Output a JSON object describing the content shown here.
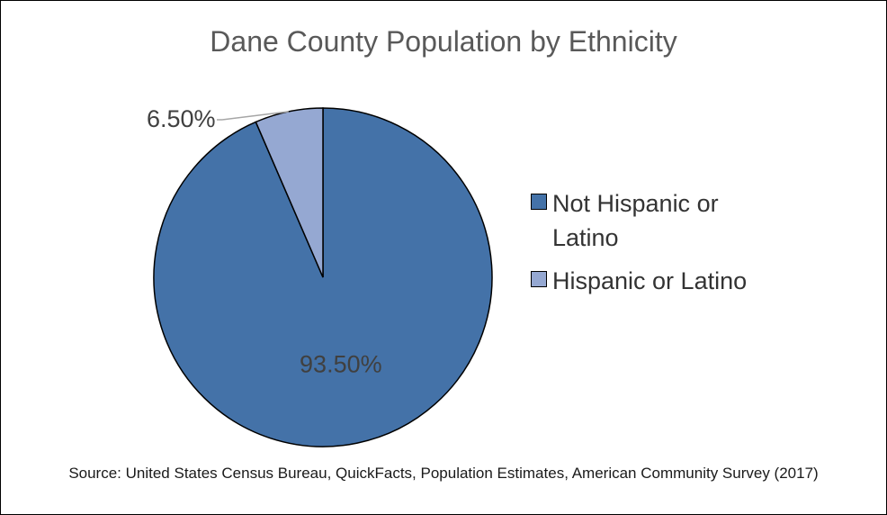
{
  "chart_data": {
    "type": "pie",
    "title": "Dane County Population by Ethnicity",
    "slices": [
      {
        "name": "Not Hispanic or Latino",
        "value": 93.5,
        "label": "93.50%",
        "color": "#4472A8"
      },
      {
        "name": "Hispanic or Latino",
        "value": 6.5,
        "label": "6.50%",
        "color": "#95A8D2"
      }
    ],
    "legend_placement": "right",
    "source_note": "Source: United States Census Bureau, QuickFacts, Population Estimates, American Community Survey (2017)"
  }
}
